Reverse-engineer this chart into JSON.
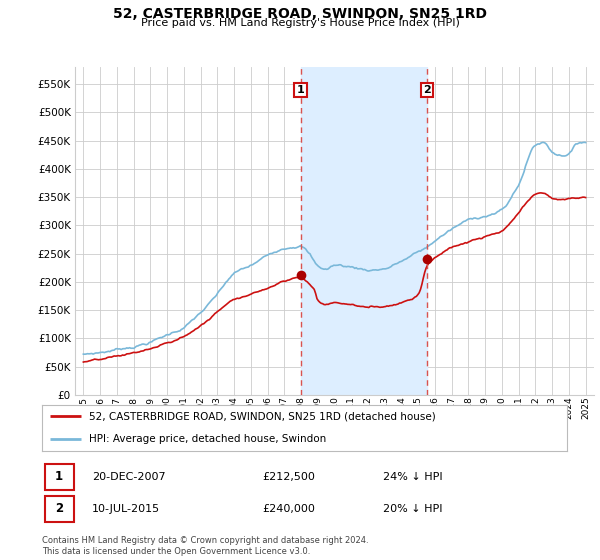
{
  "title": "52, CASTERBRIDGE ROAD, SWINDON, SN25 1RD",
  "subtitle": "Price paid vs. HM Land Registry's House Price Index (HPI)",
  "legend_line1": "52, CASTERBRIDGE ROAD, SWINDON, SN25 1RD (detached house)",
  "legend_line2": "HPI: Average price, detached house, Swindon",
  "footnote": "Contains HM Land Registry data © Crown copyright and database right 2024.\nThis data is licensed under the Open Government Licence v3.0.",
  "transaction1_date": "20-DEC-2007",
  "transaction1_price": "£212,500",
  "transaction1_hpi": "24% ↓ HPI",
  "transaction2_date": "10-JUL-2015",
  "transaction2_price": "£240,000",
  "transaction2_hpi": "20% ↓ HPI",
  "hpi_color": "#7ab8d9",
  "price_color": "#cc1111",
  "vline_color": "#d9534f",
  "shade_color": "#ddeeff",
  "marker_color": "#aa0000",
  "grid_color": "#cccccc",
  "bg_color": "#ffffff",
  "ylim": [
    0,
    580000
  ],
  "yticks": [
    0,
    50000,
    100000,
    150000,
    200000,
    250000,
    300000,
    350000,
    400000,
    450000,
    500000,
    550000
  ],
  "vline1_x": 2007.97,
  "vline2_x": 2015.53,
  "marker1_x": 2007.97,
  "marker1_y": 212500,
  "marker2_x": 2015.53,
  "marker2_y": 240000,
  "xmin": 1994.5,
  "xmax": 2025.5
}
